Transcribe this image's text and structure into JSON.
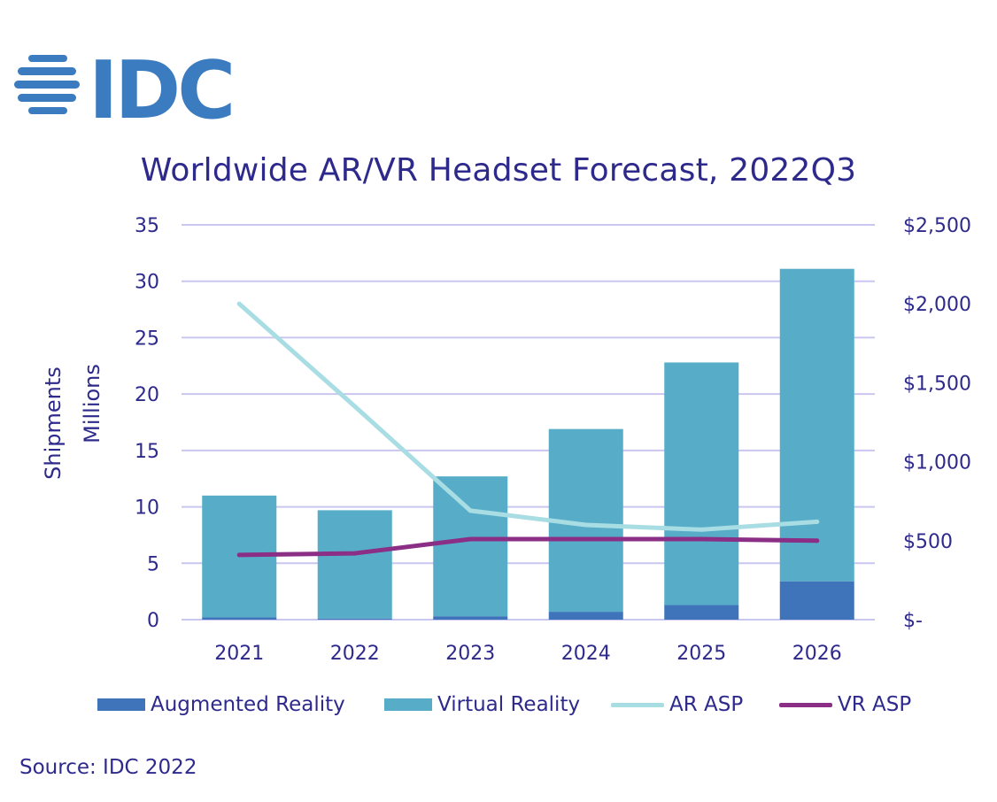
{
  "logo": {
    "text": "IDC",
    "color": "#3b7bbf"
  },
  "chart_data": {
    "type": "bar",
    "title": "Worldwide AR/VR Headset Forecast, 2022Q3",
    "categories": [
      "2021",
      "2022",
      "2023",
      "2024",
      "2025",
      "2026"
    ],
    "ylabel": [
      "Shipments",
      "Millions"
    ],
    "ylim": [
      0,
      35
    ],
    "y2lim": [
      0,
      2500
    ],
    "yticks": [
      "0",
      "5",
      "10",
      "15",
      "20",
      "25",
      "30",
      "35"
    ],
    "y2ticks": [
      "$-",
      "$500",
      "$1,000",
      "$1,500",
      "$2,000",
      "$2,500"
    ],
    "grid": true,
    "stacked": true,
    "series": [
      {
        "name": "Augmented Reality",
        "kind": "bar",
        "color": "#3f73ba",
        "values": [
          0.2,
          0.1,
          0.3,
          0.7,
          1.3,
          3.4
        ]
      },
      {
        "name": "Virtual Reality",
        "kind": "bar",
        "color": "#57adc8",
        "values": [
          10.8,
          9.6,
          12.4,
          16.2,
          21.5,
          27.7
        ]
      },
      {
        "name": "AR ASP",
        "kind": "line",
        "axis": "right",
        "color": "#a9dde4",
        "values": [
          2000,
          1350,
          690,
          600,
          570,
          620
        ]
      },
      {
        "name": "VR ASP",
        "kind": "line",
        "axis": "right",
        "color": "#8b2f86",
        "values": [
          410,
          420,
          510,
          510,
          510,
          500
        ]
      }
    ],
    "legend_position": "bottom"
  },
  "source": "Source: IDC 2022"
}
